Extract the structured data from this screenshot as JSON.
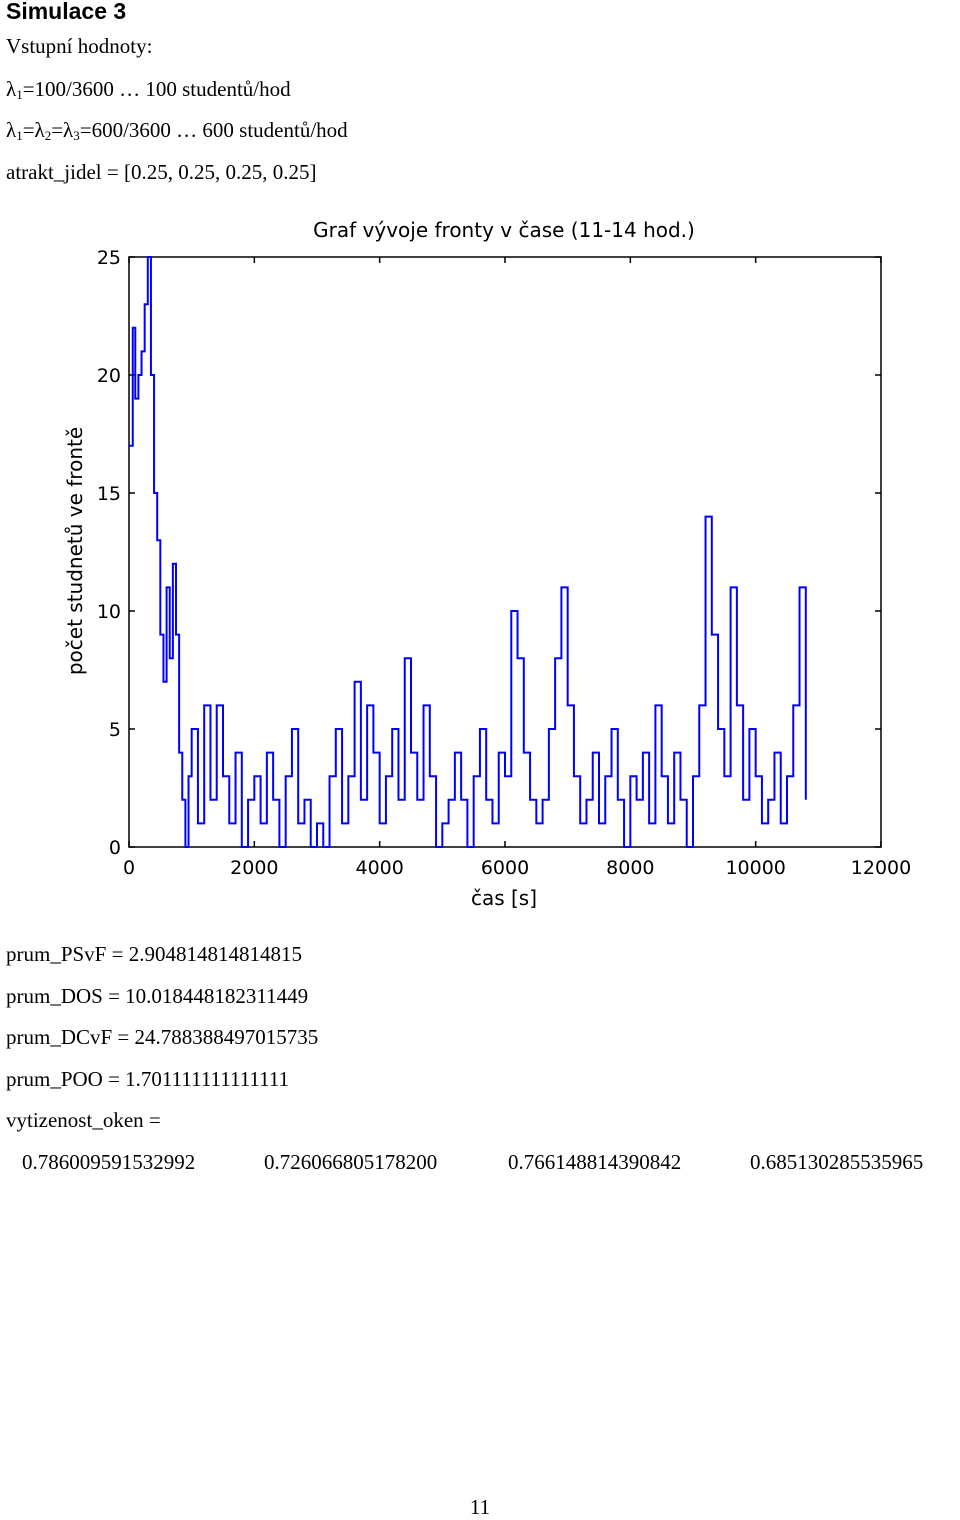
{
  "heading": "Simulace 3",
  "inputs": {
    "label": "Vstupní hodnoty:",
    "lambda1": {
      "symbol": "λ",
      "sub": "1",
      "value": "=100/3600 … 100 studentů/hod"
    },
    "lambda_all": {
      "sym1": "λ",
      "sub1": "1",
      "sym2": "=λ",
      "sub2": "2",
      "sym3": "=λ",
      "sub3": "3",
      "value": "=600/3600 … 600 studentů/hod"
    },
    "atrakt": "atrakt_jidel = [0.25, 0.25, 0.25, 0.25]"
  },
  "results": {
    "psvf": "prum_PSvF = 2.904814814814815",
    "dos": "prum_DOS = 10.018448182311449",
    "dcvf": "prum_DCvF = 24.788388497015735",
    "poo": "prum_POO = 1.701111111111111",
    "vytizenost_label": "vytizenost_oken =",
    "vytizenost_values": [
      "0.786009591532992",
      "0.726066805178200",
      "0.766148814390842",
      "0.685130285535965"
    ]
  },
  "page_number": "11",
  "chart_data": {
    "type": "line",
    "title": "Graf vývoje fronty v čase (11-14 hod.)",
    "xlabel": "čas [s]",
    "ylabel": "počet studnetů ve frontě",
    "xlim": [
      0,
      12000
    ],
    "ylim": [
      0,
      25
    ],
    "xticks": [
      "0",
      "2000",
      "4000",
      "6000",
      "8000",
      "10000",
      "12000"
    ],
    "yticks": [
      "0",
      "5",
      "10",
      "15",
      "20",
      "25"
    ],
    "line_color": "#0000ff",
    "series": [
      {
        "x": [
          0,
          60,
          100,
          150,
          200,
          250,
          300,
          350,
          400,
          450,
          500,
          550,
          600,
          650,
          700,
          750,
          800,
          850,
          900,
          950,
          1000,
          1100,
          1200,
          1300,
          1400,
          1500,
          1600,
          1700,
          1800,
          1900,
          2000,
          2100,
          2200,
          2300,
          2400,
          2500,
          2600,
          2700,
          2800,
          2900,
          3000,
          3100,
          3200,
          3300,
          3400,
          3500,
          3600,
          3700,
          3800,
          3900,
          4000,
          4100,
          4200,
          4300,
          4400,
          4500,
          4600,
          4700,
          4800,
          4900,
          5000,
          5100,
          5200,
          5300,
          5400,
          5500,
          5600,
          5700,
          5800,
          5900,
          6000,
          6100,
          6200,
          6300,
          6400,
          6500,
          6600,
          6700,
          6800,
          6900,
          7000,
          7100,
          7200,
          7300,
          7400,
          7500,
          7600,
          7700,
          7800,
          7900,
          8000,
          8100,
          8200,
          8300,
          8400,
          8500,
          8600,
          8700,
          8800,
          8900,
          9000,
          9100,
          9200,
          9300,
          9400,
          9500,
          9600,
          9700,
          9800,
          9900,
          10000,
          10100,
          10200,
          10300,
          10400,
          10500,
          10600,
          10700,
          10800
        ],
        "y": [
          17,
          22,
          19,
          20,
          21,
          23,
          25,
          20,
          15,
          13,
          9,
          7,
          11,
          8,
          12,
          9,
          4,
          2,
          0,
          3,
          5,
          1,
          6,
          2,
          6,
          3,
          1,
          4,
          0,
          2,
          3,
          1,
          4,
          2,
          0,
          3,
          5,
          1,
          2,
          0,
          1,
          0,
          3,
          5,
          1,
          3,
          7,
          2,
          6,
          4,
          1,
          3,
          5,
          2,
          8,
          4,
          2,
          6,
          3,
          0,
          1,
          2,
          4,
          2,
          0,
          3,
          5,
          2,
          1,
          4,
          3,
          10,
          8,
          4,
          2,
          1,
          2,
          5,
          8,
          11,
          6,
          3,
          1,
          2,
          4,
          1,
          3,
          5,
          2,
          0,
          3,
          2,
          4,
          1,
          6,
          3,
          1,
          4,
          2,
          0,
          3,
          6,
          14,
          9,
          5,
          3,
          11,
          6,
          2,
          5,
          3,
          1,
          2,
          4,
          1,
          3,
          6,
          11,
          2
        ]
      }
    ]
  }
}
